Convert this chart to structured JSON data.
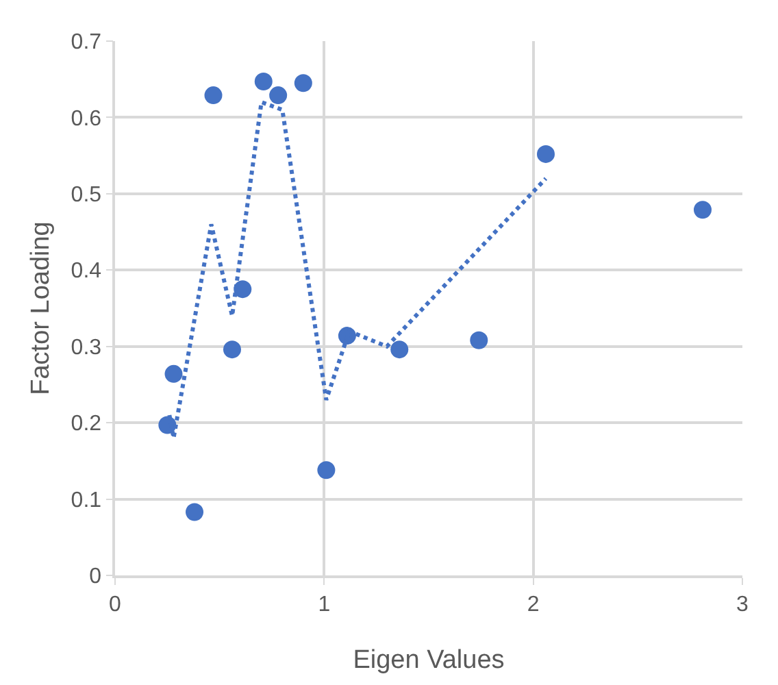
{
  "chart_data": {
    "type": "scatter",
    "xlabel": "Eigen Values",
    "ylabel": "Factor Loading",
    "xlim": [
      0,
      3
    ],
    "xticks": [
      0,
      1,
      2,
      3
    ],
    "ylim": [
      0,
      0.7
    ],
    "yticks": [
      0,
      0.1,
      0.2,
      0.3,
      0.4,
      0.5,
      0.6,
      0.7
    ],
    "grid": true,
    "marker": "circle",
    "x": [
      0.25,
      0.28,
      0.38,
      0.47,
      0.56,
      0.61,
      0.71,
      0.78,
      0.9,
      1.01,
      1.11,
      1.36,
      1.74,
      2.06,
      2.81
    ],
    "series": [
      {
        "color": "#4472c4",
        "values": [
          0.197,
          0.264,
          0.083,
          0.629,
          0.296,
          0.375,
          0.647,
          0.629,
          0.645,
          0.138,
          0.314,
          0.296,
          0.308,
          0.552,
          0.479
        ]
      },
      {
        "type": "line",
        "line_style": "dotted",
        "marker": "none",
        "color": "#4472c4",
        "x": [
          0.26,
          0.28,
          0.46,
          0.56,
          0.7,
          0.8,
          1.01,
          1.12,
          1.3,
          2.06
        ],
        "values": [
          0.21,
          0.18,
          0.46,
          0.34,
          0.62,
          0.61,
          0.23,
          0.32,
          0.3,
          0.52
        ]
      }
    ]
  }
}
